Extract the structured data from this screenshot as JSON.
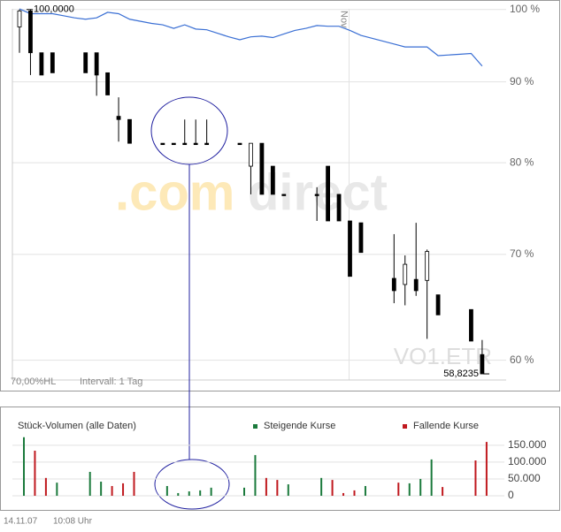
{
  "chart_data": [
    {
      "type": "candlestick",
      "categories": [
        null,
        null,
        null,
        null,
        null,
        null,
        null,
        null,
        null,
        null,
        null,
        null,
        null,
        null,
        null,
        null,
        null,
        null,
        null,
        null,
        null,
        null,
        null,
        null,
        null,
        null,
        null,
        null,
        null,
        null,
        "Nov",
        null,
        null,
        null,
        null,
        null,
        null,
        null,
        null,
        null,
        null,
        null,
        null
      ],
      "open": [
        97.5,
        99.8,
        93.9,
        93.9,
        null,
        null,
        93.9,
        93.9,
        91.2,
        85.6,
        85.2,
        null,
        null,
        82.3,
        82.3,
        82.3,
        82.3,
        82.3,
        null,
        null,
        82.3,
        79.6,
        82.3,
        79.6,
        76.4,
        null,
        null,
        76.4,
        79.6,
        76.4,
        73.5,
        73.3,
        null,
        null,
        67.6,
        67.0,
        67.5,
        67.4,
        66.0,
        null,
        null,
        64.6,
        60.5
      ],
      "high": [
        100,
        100,
        93.9,
        93.9,
        null,
        null,
        93.9,
        93.9,
        91.2,
        88.0,
        85.2,
        null,
        null,
        82.3,
        82.3,
        85.2,
        85.2,
        85.2,
        null,
        null,
        82.3,
        82.3,
        82.3,
        79.6,
        76.4,
        null,
        null,
        77.2,
        79.6,
        76.4,
        73.5,
        73.3,
        null,
        null,
        72.1,
        69.9,
        73.3,
        70.5,
        66.0,
        null,
        null,
        64.6,
        61.8
      ],
      "low": [
        93.9,
        90.9,
        90.9,
        91.2,
        null,
        null,
        91.2,
        88.2,
        88.3,
        82.5,
        82.3,
        null,
        null,
        82.2,
        82.2,
        82.2,
        82.2,
        82.2,
        null,
        null,
        82.2,
        76.4,
        76.4,
        76.4,
        76.3,
        null,
        null,
        73.5,
        73.5,
        73.5,
        67.8,
        70.2,
        null,
        null,
        65.2,
        65.0,
        65.9,
        61.9,
        64.1,
        null,
        null,
        61.7,
        58.8235
      ],
      "close": [
        99.8,
        93.9,
        90.9,
        91.2,
        null,
        null,
        91.2,
        90.9,
        88.3,
        85.2,
        82.3,
        null,
        null,
        82.2,
        82.2,
        82.2,
        82.2,
        82.2,
        null,
        null,
        82.2,
        82.3,
        76.4,
        76.4,
        76.3,
        null,
        null,
        76.3,
        73.5,
        73.5,
        67.8,
        70.2,
        null,
        null,
        66.4,
        69.0,
        66.4,
        70.3,
        64.1,
        null,
        null,
        61.7,
        58.8235
      ],
      "up_color": "#ffffff",
      "down_color": "#000000",
      "line": {
        "color": "#3a6fd4",
        "values": [
          100.1,
          99.4,
          99.4,
          99.4,
          99.1,
          98.8,
          98.6,
          98.8,
          99.6,
          99.4,
          98.6,
          98.3,
          98.0,
          97.8,
          97.3,
          97.8,
          97.2,
          97.1,
          96.6,
          96.1,
          95.7,
          96.1,
          96.2,
          96.0,
          96.5,
          97.0,
          97.3,
          97.7,
          97.6,
          97.6,
          97.0,
          96.3,
          95.9,
          95.5,
          95.1,
          94.7,
          94.7,
          94.7,
          93.5,
          93.6,
          93.7,
          93.8,
          92.1
        ]
      },
      "ylim": [
        58.3,
        101.4
      ],
      "log_scale": true,
      "grid": true,
      "yticks": [
        {
          "value": 100,
          "label": "100 %"
        },
        {
          "value": 90,
          "label": "90 %"
        },
        {
          "value": 80,
          "label": "80 %"
        },
        {
          "value": 70,
          "label": "70 %"
        },
        {
          "value": 60,
          "label": "60 %"
        }
      ],
      "annotations": [
        {
          "value": 100,
          "label": "100,0000"
        },
        {
          "value": 58.8235,
          "label": "58,8235"
        }
      ],
      "watermark": [
        ".com",
        "direct"
      ],
      "symbol": "VO1.ETR",
      "scale_note": "70,00%HL",
      "interval": "Intervall: 1 Tag"
    },
    {
      "type": "bar",
      "title": "Stück-Volumen (alle Daten)",
      "categories": [
        null,
        null,
        null,
        null,
        null,
        null,
        null,
        null,
        null,
        null,
        null,
        null,
        null,
        null,
        null,
        null,
        null,
        null,
        null,
        null,
        null,
        null,
        null,
        null,
        null,
        null,
        null,
        null,
        null,
        null,
        null,
        null,
        null,
        null,
        null,
        null,
        null,
        null,
        null,
        null,
        null,
        null,
        null
      ],
      "series": [
        {
          "name": "Steigende Kurse",
          "color": "#1b7a3c",
          "values": [
            174000,
            null,
            null,
            39000,
            null,
            null,
            71000,
            42000,
            null,
            null,
            null,
            null,
            null,
            29000,
            8000,
            13000,
            16000,
            24000,
            null,
            null,
            24000,
            121000,
            null,
            null,
            34000,
            null,
            null,
            53000,
            null,
            null,
            null,
            29000,
            null,
            null,
            null,
            37000,
            50000,
            108000,
            null,
            null,
            null,
            null,
            null
          ]
        },
        {
          "name": "Fallende Kurse",
          "color": "#c0191f",
          "values": [
            null,
            134000,
            53000,
            null,
            null,
            null,
            null,
            null,
            29000,
            37000,
            71000,
            null,
            null,
            null,
            null,
            null,
            null,
            null,
            null,
            null,
            null,
            null,
            53000,
            47000,
            null,
            null,
            null,
            null,
            47000,
            8000,
            16000,
            null,
            null,
            null,
            39000,
            null,
            null,
            null,
            26000,
            null,
            null,
            105000,
            160000
          ]
        }
      ],
      "ylim": [
        0,
        176000
      ],
      "yticks": [
        {
          "value": 150000,
          "label": "150.000"
        },
        {
          "value": 100000,
          "label": "100.000"
        },
        {
          "value": 50000,
          "label": "50.000"
        },
        0
      ],
      "grid": true
    },
    {
      "date": "14.11.07",
      "time": "10:08 Uhr"
    }
  ]
}
